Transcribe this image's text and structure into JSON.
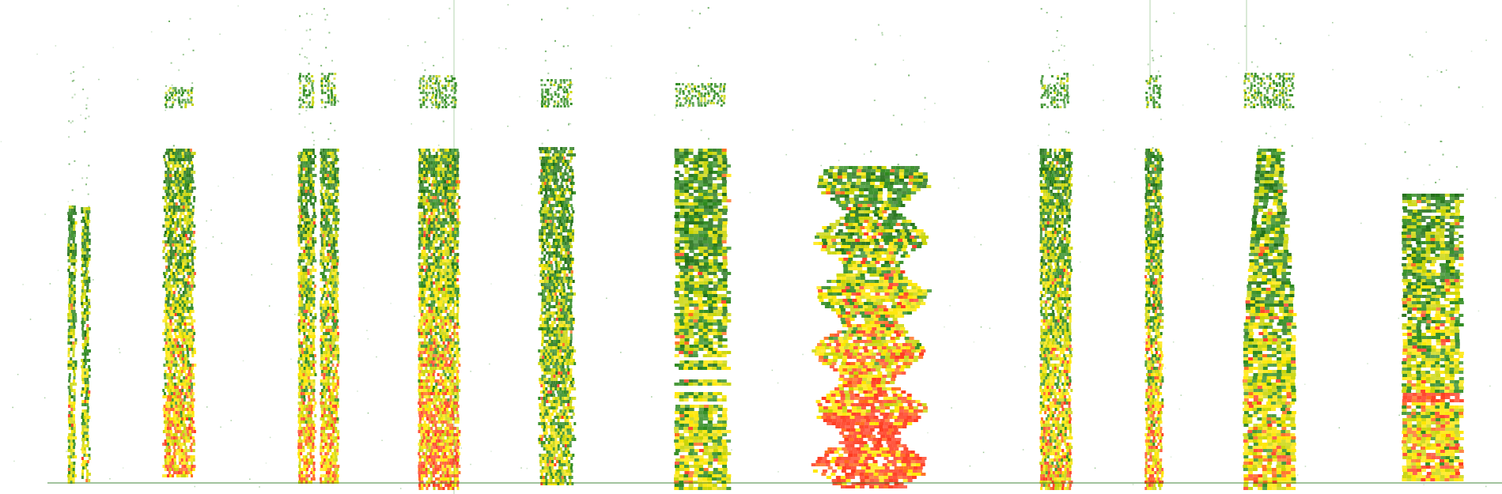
{
  "image": {
    "kind": "spectrogram-montage",
    "background_color": "#ffffff",
    "palette": {
      "low": "#2e8b1e",
      "low_dark": "#1f6e14",
      "mid": "#c8d400",
      "high": "#ffe600",
      "peak": "#ff6a1a",
      "peak_hot": "#ff3b1f"
    },
    "baseline_visible": true
  }
}
